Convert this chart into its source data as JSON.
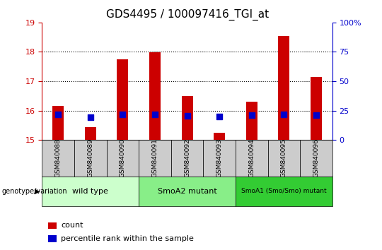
{
  "title": "GDS4495 / 100097416_TGI_at",
  "samples": [
    "GSM840088",
    "GSM840089",
    "GSM840090",
    "GSM840091",
    "GSM840092",
    "GSM840093",
    "GSM840094",
    "GSM840095",
    "GSM840096"
  ],
  "counts": [
    16.15,
    15.45,
    17.75,
    17.98,
    16.5,
    15.25,
    16.3,
    18.55,
    17.15
  ],
  "percentile_ranks": [
    15.87,
    15.78,
    15.87,
    15.87,
    15.83,
    15.79,
    15.84,
    15.87,
    15.85
  ],
  "ylim_left": [
    15,
    19
  ],
  "yticks_left": [
    15,
    16,
    17,
    18,
    19
  ],
  "ylim_right": [
    0,
    100
  ],
  "yticks_right": [
    0,
    25,
    50,
    75,
    100
  ],
  "bar_bottom": 15.0,
  "bar_color": "#cc0000",
  "dot_color": "#0000cc",
  "groups": [
    {
      "label": "wild type",
      "n": 3,
      "color": "#ccffcc"
    },
    {
      "label": "SmoA2 mutant",
      "n": 3,
      "color": "#88ee88"
    },
    {
      "label": "SmoA1 (Smo/Smo) mutant",
      "n": 3,
      "color": "#33cc33"
    }
  ],
  "group_label_prefix": "genotype/variation",
  "legend_count_label": "count",
  "legend_pct_label": "percentile rank within the sample",
  "title_fontsize": 11,
  "axis_color_left": "#cc0000",
  "axis_color_right": "#0000cc",
  "bar_width": 0.35,
  "dot_size": 28,
  "grid_color": "black",
  "sample_box_color": "#cccccc",
  "right_tick_labels": [
    "0",
    "25",
    "50",
    "75",
    "100%"
  ]
}
